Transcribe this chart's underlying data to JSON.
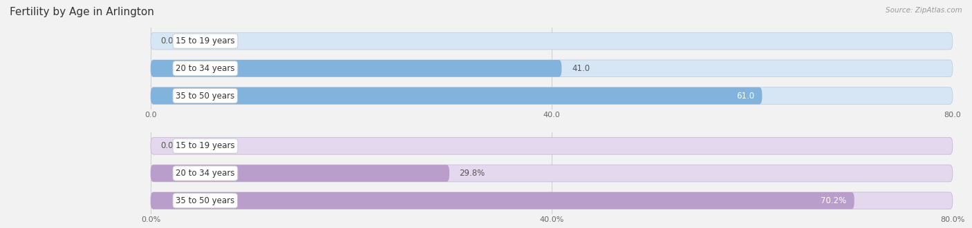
{
  "title": "Fertility by Age in Arlington",
  "source": "Source: ZipAtlas.com",
  "top_section": {
    "categories": [
      "15 to 19 years",
      "20 to 34 years",
      "35 to 50 years"
    ],
    "values": [
      0.0,
      41.0,
      61.0
    ],
    "xmax": 80.0,
    "xticks": [
      0.0,
      40.0,
      80.0
    ],
    "xtick_labels": [
      "0.0",
      "40.0",
      "80.0"
    ],
    "bar_color": "#82b3dc",
    "bar_bg_color": "#d6e6f5",
    "bar_edge_color": "#b8cfe8"
  },
  "bottom_section": {
    "categories": [
      "15 to 19 years",
      "20 to 34 years",
      "35 to 50 years"
    ],
    "values": [
      0.0,
      29.8,
      70.2
    ],
    "xmax": 80.0,
    "xticks": [
      0.0,
      40.0,
      80.0
    ],
    "xtick_labels": [
      "0.0%",
      "40.0%",
      "80.0%"
    ],
    "bar_color": "#b99ecb",
    "bar_bg_color": "#e4d8ee",
    "bar_edge_color": "#c9b8dc"
  },
  "bg_color": "#f2f2f2",
  "title_fontsize": 11,
  "value_fontsize": 8.5,
  "tick_fontsize": 8,
  "source_fontsize": 7.5,
  "cat_label_fontsize": 8.5,
  "bar_height": 0.62
}
